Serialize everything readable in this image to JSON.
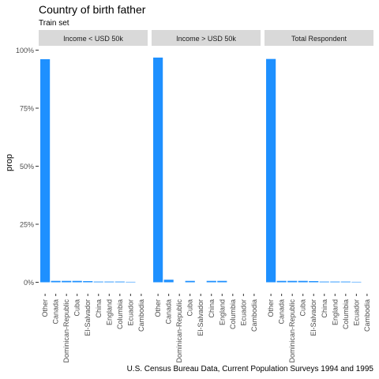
{
  "chart_data": {
    "type": "bar",
    "title": "Country of birth father",
    "subtitle": "Train set",
    "caption": "U.S. Census Bureau Data, Current Population Surveys 1994 and 1995",
    "xlabel": "",
    "ylabel": "prop",
    "ylim": [
      0,
      1
    ],
    "yticks": [
      0,
      0.25,
      0.5,
      0.75,
      1.0
    ],
    "yticklabels": [
      "0%",
      "25%",
      "50%",
      "75%",
      "100%"
    ],
    "grid": false,
    "bar_color": "#1E90FF",
    "strip_color": "#D9D9D9",
    "categories": [
      "Other",
      "Canada",
      "Dominican-Republic",
      "Cuba",
      "El-Salvador",
      "China",
      "England",
      "Columbia",
      "Ecuador",
      "Cambodia"
    ],
    "panels": [
      {
        "name": "Income < USD 50k",
        "values": [
          0.961,
          0.006,
          0.006,
          0.006,
          0.005,
          0.003,
          0.003,
          0.003,
          0.002,
          0.0
        ]
      },
      {
        "name": "Income > USD 50k",
        "values": [
          0.968,
          0.011,
          0.0,
          0.006,
          0.0,
          0.006,
          0.006,
          0.0,
          0.0,
          0.0
        ]
      },
      {
        "name": "Total Respondent",
        "values": [
          0.962,
          0.006,
          0.006,
          0.006,
          0.005,
          0.003,
          0.003,
          0.003,
          0.002,
          0.0
        ]
      }
    ]
  }
}
